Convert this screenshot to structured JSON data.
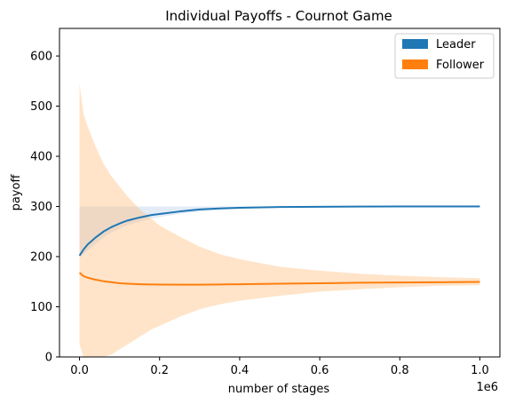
{
  "chart_data": {
    "type": "line",
    "title": "Individual Payoffs - Cournot Game",
    "xlabel": "number of stages",
    "ylabel": "payoff",
    "x_offset_label": "1e6",
    "xlim": [
      -0.05,
      1.05
    ],
    "ylim": [
      0,
      655
    ],
    "x_ticks": [
      0.0,
      0.2,
      0.4,
      0.6,
      0.8,
      1.0
    ],
    "x_tick_labels": [
      "0.0",
      "0.2",
      "0.4",
      "0.6",
      "0.8",
      "1.0"
    ],
    "y_ticks": [
      0,
      100,
      200,
      300,
      400,
      500,
      600
    ],
    "y_tick_labels": [
      "0",
      "100",
      "200",
      "300",
      "400",
      "500",
      "600"
    ],
    "grid": false,
    "legend": {
      "position": "top-right"
    },
    "series": [
      {
        "name": "Leader",
        "color": "#1f77b4",
        "band_color": "#aec7e8",
        "x": [
          0.0,
          0.01,
          0.02,
          0.04,
          0.06,
          0.08,
          0.1,
          0.12,
          0.15,
          0.18,
          0.2,
          0.25,
          0.3,
          0.35,
          0.4,
          0.5,
          0.6,
          0.7,
          0.8,
          0.9,
          1.0
        ],
        "y": [
          202,
          214,
          224,
          238,
          250,
          259,
          266,
          272,
          278,
          283,
          285,
          290,
          294,
          296,
          297.5,
          299,
          299.5,
          299.8,
          300,
          300,
          300
        ],
        "lower": [
          200,
          205,
          212,
          225,
          238,
          248,
          256,
          263,
          270,
          276,
          279,
          285,
          290,
          293,
          295.5,
          297.5,
          298.5,
          299.2,
          299.6,
          299.8,
          300
        ],
        "upper": [
          300,
          300,
          300,
          300,
          300,
          300,
          300,
          300,
          300,
          300,
          300,
          300,
          300,
          300,
          300,
          300,
          300,
          300,
          300,
          300,
          300
        ]
      },
      {
        "name": "Follower",
        "color": "#ff7f0e",
        "band_color": "#ffbb78",
        "x": [
          0.0,
          0.01,
          0.02,
          0.04,
          0.06,
          0.08,
          0.1,
          0.12,
          0.15,
          0.18,
          0.2,
          0.25,
          0.3,
          0.35,
          0.4,
          0.5,
          0.6,
          0.7,
          0.8,
          0.9,
          1.0
        ],
        "y": [
          168,
          161,
          158,
          154,
          151,
          149,
          147,
          146,
          145,
          144.5,
          144.3,
          144,
          144,
          144.5,
          145,
          146,
          147,
          148,
          148.5,
          149,
          149.5
        ],
        "lower": [
          25,
          0,
          0,
          0,
          0,
          5,
          15,
          25,
          40,
          55,
          62,
          80,
          95,
          105,
          112,
          122,
          130,
          135,
          139,
          142,
          143
        ],
        "upper": [
          545,
          485,
          460,
          420,
          385,
          360,
          340,
          320,
          295,
          275,
          262,
          240,
          220,
          205,
          195,
          180,
          172,
          166,
          162,
          159,
          157
        ]
      }
    ]
  }
}
